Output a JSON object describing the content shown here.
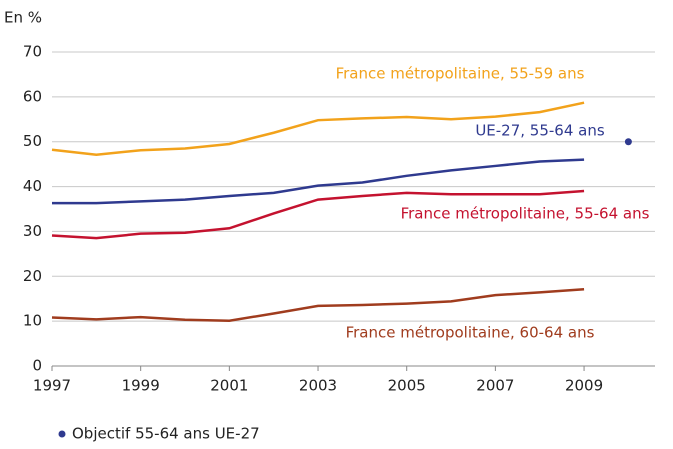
{
  "chart_data": {
    "type": "line",
    "y_label": "En %",
    "x": [
      1997,
      1998,
      1999,
      2000,
      2001,
      2002,
      2003,
      2004,
      2005,
      2006,
      2007,
      2008,
      2009
    ],
    "series": [
      {
        "name": "France métropolitaine, 55-59 ans",
        "color": "#f2a21b",
        "values": [
          48.2,
          47.1,
          48.1,
          48.5,
          49.5,
          52.0,
          54.8,
          55.2,
          55.5,
          55.0,
          55.6,
          56.6,
          58.7
        ]
      },
      {
        "name": "UE-27, 55-64 ans",
        "color": "#2f3a8f",
        "values": [
          36.3,
          36.3,
          36.7,
          37.1,
          37.9,
          38.6,
          40.2,
          40.9,
          42.4,
          43.6,
          44.6,
          45.6,
          46.0
        ]
      },
      {
        "name": "France métropolitaine, 55-64 ans",
        "color": "#c4122f",
        "values": [
          29.1,
          28.5,
          29.5,
          29.7,
          30.7,
          34.0,
          37.1,
          37.9,
          38.6,
          38.3,
          38.3,
          38.3,
          39.0
        ]
      },
      {
        "name": "France métropolitaine, 60-64 ans",
        "color": "#a03c1e",
        "values": [
          10.8,
          10.4,
          10.9,
          10.3,
          10.1,
          11.7,
          13.4,
          13.6,
          13.9,
          14.4,
          15.8,
          16.4,
          17.1
        ]
      }
    ],
    "target": {
      "name": "Objectif 55-64 ans UE-27",
      "color": "#2f3a8f",
      "x": [
        2010
      ],
      "values": [
        50
      ]
    },
    "xlim": [
      1997,
      2010.6
    ],
    "xticks": [
      1997,
      1999,
      2001,
      2003,
      2005,
      2007,
      2009
    ],
    "ylim": [
      0,
      70
    ],
    "yticks": [
      0,
      10,
      20,
      30,
      40,
      50,
      60,
      70
    ],
    "grid": true
  }
}
